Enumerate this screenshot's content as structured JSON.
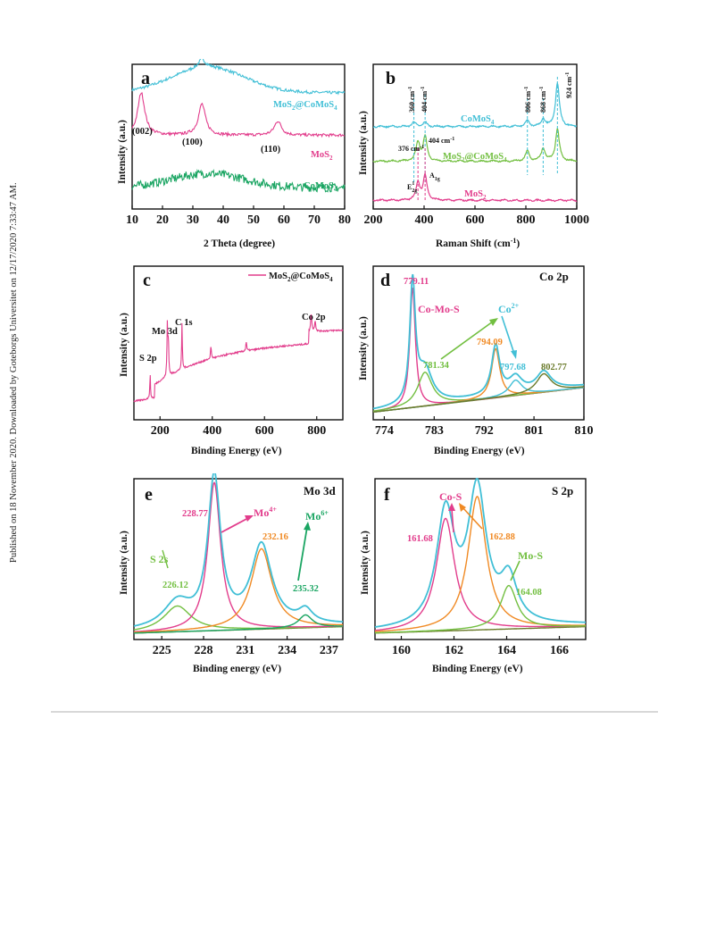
{
  "side_stamp": "Published on 18 November 2020. Downloaded by Goteborgs Universitet on 12/17/2020 7:33:47 AM.",
  "colors": {
    "cyan": "#41bfd6",
    "pink": "#e23d8c",
    "green": "#1aa562",
    "lime": "#72bf40",
    "orange": "#f08a24",
    "olive": "#6a7a2a",
    "dark": "#222222"
  },
  "chart_data": [
    {
      "id": "a",
      "type": "line",
      "panel_label": "a",
      "xlabel": "2 Theta (degree)",
      "ylabel": "Intensity (a.u.)",
      "xlim": [
        10,
        80
      ],
      "xticks": [
        "10",
        "20",
        "30",
        "40",
        "50",
        "60",
        "70",
        "80"
      ],
      "series": [
        {
          "name": "MoS2@CoMoS4",
          "label_main": "MoS",
          "label_sub1": "2",
          "label_mid": "@CoMoS",
          "label_sub2": "4",
          "color": "#41bfd6",
          "baseline": 0.82,
          "bump": 0.18,
          "peaks": [
            [
              33,
              0.06
            ]
          ]
        },
        {
          "name": "MoS2",
          "label_main": "MoS",
          "label_sub1": "2",
          "color": "#e23d8c",
          "baseline": 0.52,
          "bump": 0.0,
          "peaks": [
            [
              13,
              0.3
            ],
            [
              33,
              0.22
            ],
            [
              58,
              0.1
            ]
          ]
        },
        {
          "name": "CoMoS4",
          "label_main": "CoMoS",
          "label_sub1": "4",
          "color": "#1aa562",
          "baseline": 0.15,
          "bump": 0.1,
          "peaks": []
        }
      ],
      "annotations": [
        "(002)",
        "(100)",
        "(110)"
      ]
    },
    {
      "id": "b",
      "type": "line",
      "panel_label": "b",
      "xlabel": "Raman Shift (cm",
      "xlabel_sup": "-1",
      "xlabel_end": ")",
      "ylabel": "Intensity (a.u.)",
      "xlim": [
        200,
        1000
      ],
      "xticks": [
        "200",
        "400",
        "600",
        "800",
        "1000"
      ],
      "series": [
        {
          "name": "CoMoS4",
          "color": "#41bfd6",
          "peaks": [
            [
              360,
              0.03
            ],
            [
              404,
              0.03
            ],
            [
              806,
              0.04
            ],
            [
              868,
              0.05
            ],
            [
              924,
              0.3
            ]
          ]
        },
        {
          "name": "MoS2@CoMoS4",
          "color": "#72bf40",
          "peaks": [
            [
              376,
              0.13
            ],
            [
              404,
              0.17
            ],
            [
              806,
              0.07
            ],
            [
              868,
              0.09
            ],
            [
              924,
              0.22
            ]
          ]
        },
        {
          "name": "MoS2",
          "color": "#e23d8c",
          "peaks": [
            [
              376,
              0.12
            ],
            [
              404,
              0.17
            ]
          ]
        }
      ],
      "peak_labels": [
        "360 cm",
        "404 cm",
        "806 cm",
        "868 cm",
        "924 cm"
      ],
      "mid_labels": [
        "376 cm",
        "404 cm"
      ],
      "mode_labels": [
        "E",
        "2g",
        "1",
        "A",
        "1g"
      ],
      "series_labels": [
        "CoMoS",
        "4",
        "MoS",
        "2",
        "@CoMoS",
        "4",
        "MoS",
        "2"
      ],
      "sup": "-1"
    },
    {
      "id": "c",
      "type": "line",
      "panel_label": "c",
      "xlabel": "Binding Energy (eV)",
      "ylabel": "Intensity (a.u.)",
      "xlim": [
        100,
        900
      ],
      "xticks": [
        "200",
        "400",
        "600",
        "800"
      ],
      "legend": {
        "text": "MoS",
        "sub1": "2",
        "mid": "@CoMoS",
        "sub2": "4",
        "placement": "top-right"
      },
      "peak_labels": [
        "S 2p",
        "Mo 3d",
        "C 1s",
        "Co 2p"
      ],
      "series": [
        {
          "name": "MoS2@CoMoS4",
          "color": "#e23d8c"
        }
      ]
    },
    {
      "id": "d",
      "type": "line",
      "panel_label": "d",
      "title": "Co 2p",
      "xlabel": "Binding Energy (eV)",
      "ylabel": "Intensity (a.u.)",
      "xlim": [
        772,
        810
      ],
      "xticks": [
        "774",
        "783",
        "792",
        "801",
        "810"
      ],
      "fits": [
        {
          "name": "fit-779",
          "color": "#e23d8c",
          "center": 779.11,
          "amp": 0.78,
          "width": 0.6
        },
        {
          "name": "fit-781",
          "color": "#72bf40",
          "center": 781.34,
          "amp": 0.22,
          "width": 1.6
        },
        {
          "name": "fit-794",
          "color": "#f08a24",
          "center": 794.09,
          "amp": 0.32,
          "width": 0.9
        },
        {
          "name": "fit-797",
          "color": "#41bfd6",
          "center": 797.68,
          "amp": 0.1,
          "width": 1.4
        },
        {
          "name": "fit-802",
          "color": "#6a7a2a",
          "center": 802.77,
          "amp": 0.12,
          "width": 1.6
        }
      ],
      "labels": [
        "779.11",
        "Co-Mo-S",
        "781.34",
        "794.09",
        "797.68",
        "802.77",
        "Co",
        "2+"
      ]
    },
    {
      "id": "e",
      "type": "line",
      "panel_label": "e",
      "title": "Mo 3d",
      "xlabel": "Binding energy (eV)",
      "ylabel": "Intensity (a.u.)",
      "xlim": [
        223,
        238
      ],
      "xticks": [
        "225",
        "228",
        "231",
        "234",
        "237"
      ],
      "fits": [
        {
          "name": "fit-226",
          "color": "#72bf40",
          "center": 226.12,
          "amp": 0.16,
          "width": 1.2
        },
        {
          "name": "fit-228",
          "color": "#e23d8c",
          "center": 228.77,
          "amp": 0.92,
          "width": 0.55
        },
        {
          "name": "fit-232",
          "color": "#f08a24",
          "center": 232.16,
          "amp": 0.5,
          "width": 0.9
        },
        {
          "name": "fit-235",
          "color": "#1aa562",
          "center": 235.32,
          "amp": 0.08,
          "width": 0.6
        }
      ],
      "labels": [
        "S 2s",
        "226.12",
        "228.77",
        "Mo",
        "4+",
        "232.16",
        "Mo",
        "6+",
        "235.32"
      ]
    },
    {
      "id": "f",
      "type": "line",
      "panel_label": "f",
      "title": "S 2p",
      "xlabel": "Binding Energy (eV)",
      "ylabel": "Intensity (a.u.)",
      "xlim": [
        159,
        167
      ],
      "xticks": [
        "160",
        "162",
        "164",
        "166"
      ],
      "fits": [
        {
          "name": "fit-161",
          "color": "#e23d8c",
          "center": 161.68,
          "amp": 0.7,
          "width": 0.42
        },
        {
          "name": "fit-162",
          "color": "#f08a24",
          "center": 162.88,
          "amp": 0.83,
          "width": 0.42
        },
        {
          "name": "fit-164",
          "color": "#72bf40",
          "center": 164.08,
          "amp": 0.27,
          "width": 0.38
        }
      ],
      "labels": [
        "Co-S",
        "161.68",
        "162.88",
        "Mo-S",
        "164.08"
      ]
    }
  ]
}
